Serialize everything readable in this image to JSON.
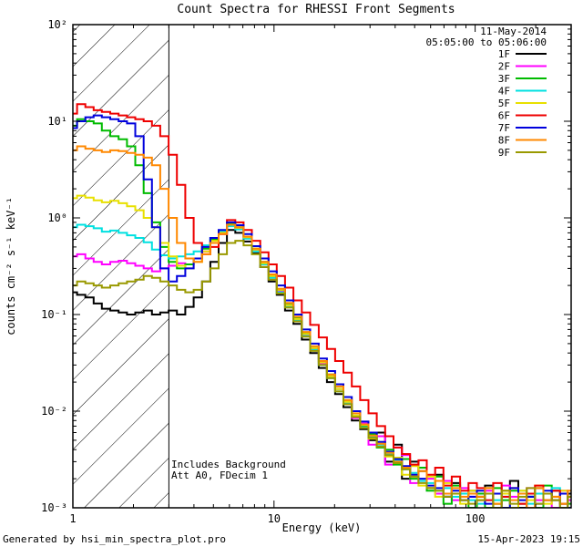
{
  "title": "Count Spectra for RHESSI Front Segments",
  "annotations": {
    "date": "11-May-2014",
    "time_range": "05:05:00 to 05:06:00",
    "note_line1": "Includes Background",
    "note_line2": "Att A0, FDecim 1"
  },
  "footer": {
    "left": "Generated by hsi_min_spectra_plot.pro",
    "right": "15-Apr-2023 19:15"
  },
  "chart_data": {
    "type": "line",
    "title": "Count Spectra for RHESSI Front Segments",
    "xlabel": "Energy (keV)",
    "ylabel": "counts cm⁻² s⁻¹ keV⁻¹",
    "xscale": "log",
    "yscale": "log",
    "xlim": [
      1,
      300
    ],
    "ylim": [
      0.001,
      100
    ],
    "x_ticks": [
      1,
      10,
      100
    ],
    "x_tick_labels": [
      "1",
      "10",
      "100"
    ],
    "y_ticks": [
      100,
      10,
      1,
      0.1,
      0.01,
      0.001
    ],
    "y_tick_labels": [
      "10²",
      "10¹",
      "10⁰",
      "10⁻¹",
      "10⁻²",
      "10⁻³"
    ],
    "grid": false,
    "legend_position": "top-right",
    "hatch_region": {
      "x_start": 1,
      "x_end": 3
    },
    "energy_kev": [
      1.0,
      1.1,
      1.21,
      1.33,
      1.46,
      1.61,
      1.77,
      1.95,
      2.14,
      2.36,
      2.59,
      2.85,
      3.14,
      3.45,
      3.8,
      4.18,
      4.6,
      5.06,
      5.56,
      6.12,
      6.73,
      7.4,
      8.14,
      8.96,
      9.85,
      10.8,
      11.9,
      13.1,
      14.4,
      15.9,
      17.5,
      19.2,
      21.1,
      23.2,
      25.6,
      28.1,
      30.9,
      34.0,
      37.4,
      41.2,
      45.3,
      49.8,
      54.8,
      60.3,
      66.3,
      72.9,
      80.2,
      88.3,
      97.1,
      107,
      117,
      129,
      142,
      156,
      172,
      189,
      208,
      229,
      252,
      277,
      300
    ],
    "series": [
      {
        "name": "1F",
        "color": "#000000",
        "values": [
          0.17,
          0.16,
          0.15,
          0.13,
          0.115,
          0.11,
          0.105,
          0.1,
          0.105,
          0.11,
          0.1,
          0.105,
          0.11,
          0.1,
          0.12,
          0.15,
          0.22,
          0.35,
          0.55,
          0.75,
          0.7,
          0.57,
          0.43,
          0.31,
          0.22,
          0.16,
          0.11,
          0.08,
          0.055,
          0.04,
          0.028,
          0.02,
          0.015,
          0.011,
          0.008,
          0.0065,
          0.005,
          0.006,
          0.003,
          0.0045,
          0.002,
          0.003,
          0.0024,
          0.0016,
          0.0022,
          0.0013,
          0.0018,
          0.0012,
          0.0015,
          0.0013,
          0.0017,
          0.0011,
          0.0014,
          0.0019,
          0.001,
          0.0013,
          0.0016,
          0.0012,
          0.0015,
          0.0011,
          0.0014
        ]
      },
      {
        "name": "2F",
        "color": "#ff00ff",
        "values": [
          0.4,
          0.42,
          0.38,
          0.35,
          0.33,
          0.35,
          0.36,
          0.34,
          0.32,
          0.3,
          0.28,
          0.3,
          0.32,
          0.34,
          0.33,
          0.38,
          0.45,
          0.55,
          0.68,
          0.85,
          0.78,
          0.62,
          0.46,
          0.34,
          0.25,
          0.175,
          0.125,
          0.09,
          0.062,
          0.044,
          0.031,
          0.023,
          0.017,
          0.012,
          0.0085,
          0.0075,
          0.0045,
          0.0055,
          0.0028,
          0.0042,
          0.0035,
          0.0018,
          0.0026,
          0.002,
          0.0014,
          0.0019,
          0.0012,
          0.0016,
          0.0013,
          0.0012,
          0.0015,
          0.001,
          0.0017,
          0.0013,
          0.0011,
          0.0016,
          0.0012,
          0.0014,
          0.001,
          0.0015,
          0.0012
        ]
      },
      {
        "name": "3F",
        "color": "#00bb00",
        "values": [
          9.0,
          10.5,
          10.0,
          9.5,
          8.0,
          7.0,
          6.5,
          5.5,
          3.5,
          1.8,
          0.9,
          0.5,
          0.35,
          0.3,
          0.33,
          0.38,
          0.48,
          0.6,
          0.72,
          0.88,
          0.8,
          0.64,
          0.48,
          0.35,
          0.25,
          0.18,
          0.13,
          0.092,
          0.065,
          0.045,
          0.032,
          0.024,
          0.017,
          0.013,
          0.009,
          0.007,
          0.0058,
          0.0042,
          0.004,
          0.0028,
          0.0032,
          0.002,
          0.0026,
          0.0015,
          0.0021,
          0.0011,
          0.0017,
          0.0014,
          0.001,
          0.0014,
          0.001,
          0.0016,
          0.0012,
          0.0015,
          0.0011,
          0.0013,
          0.001,
          0.0017,
          0.0012,
          0.0014,
          0.0011
        ]
      },
      {
        "name": "4F",
        "color": "#00e0e0",
        "values": [
          0.8,
          0.85,
          0.82,
          0.78,
          0.72,
          0.74,
          0.7,
          0.66,
          0.62,
          0.56,
          0.47,
          0.41,
          0.38,
          0.4,
          0.42,
          0.45,
          0.52,
          0.62,
          0.72,
          0.82,
          0.76,
          0.61,
          0.45,
          0.33,
          0.24,
          0.17,
          0.12,
          0.087,
          0.06,
          0.043,
          0.03,
          0.022,
          0.016,
          0.012,
          0.0088,
          0.0068,
          0.0055,
          0.0045,
          0.0036,
          0.0031,
          0.0025,
          0.0023,
          0.0019,
          0.0018,
          0.0015,
          0.0016,
          0.0013,
          0.0014,
          0.0012,
          0.0011,
          0.0016,
          0.0012,
          0.0013,
          0.001,
          0.0015,
          0.0011,
          0.0014,
          0.0012,
          0.0016,
          0.001,
          0.0013
        ]
      },
      {
        "name": "5F",
        "color": "#e8e000",
        "values": [
          1.6,
          1.7,
          1.62,
          1.52,
          1.45,
          1.5,
          1.42,
          1.32,
          1.2,
          1.0,
          0.8,
          0.55,
          0.4,
          0.32,
          0.3,
          0.35,
          0.45,
          0.58,
          0.7,
          0.85,
          0.79,
          0.63,
          0.47,
          0.34,
          0.25,
          0.18,
          0.125,
          0.09,
          0.063,
          0.045,
          0.032,
          0.023,
          0.017,
          0.0125,
          0.009,
          0.0072,
          0.0052,
          0.0048,
          0.0034,
          0.0033,
          0.0022,
          0.0027,
          0.0017,
          0.0021,
          0.0013,
          0.0018,
          0.0014,
          0.0011,
          0.0015,
          0.0012,
          0.0016,
          0.0011,
          0.0014,
          0.001,
          0.0015,
          0.0012,
          0.0017,
          0.0011,
          0.0013,
          0.0015,
          0.001
        ]
      },
      {
        "name": "6F",
        "color": "#ee0000",
        "values": [
          12,
          15,
          14,
          13,
          12.5,
          12,
          11.5,
          11,
          10.5,
          10,
          9,
          7,
          4.5,
          2.2,
          1.0,
          0.55,
          0.42,
          0.5,
          0.68,
          0.95,
          0.9,
          0.75,
          0.58,
          0.44,
          0.33,
          0.25,
          0.19,
          0.14,
          0.105,
          0.078,
          0.058,
          0.044,
          0.033,
          0.025,
          0.018,
          0.013,
          0.0095,
          0.007,
          0.0055,
          0.0042,
          0.0036,
          0.0028,
          0.0031,
          0.0022,
          0.0026,
          0.0017,
          0.0021,
          0.0015,
          0.0018,
          0.0016,
          0.0012,
          0.0018,
          0.0013,
          0.0016,
          0.0011,
          0.0014,
          0.0017,
          0.0012,
          0.0015,
          0.0011,
          0.0013
        ]
      },
      {
        "name": "7F",
        "color": "#0000dd",
        "values": [
          8.5,
          10,
          11,
          11.5,
          11,
          10.5,
          10,
          9.5,
          7.0,
          2.5,
          0.8,
          0.3,
          0.22,
          0.25,
          0.3,
          0.38,
          0.5,
          0.62,
          0.75,
          0.9,
          0.84,
          0.68,
          0.51,
          0.38,
          0.28,
          0.2,
          0.14,
          0.1,
          0.07,
          0.05,
          0.035,
          0.026,
          0.019,
          0.014,
          0.01,
          0.0078,
          0.006,
          0.0048,
          0.0038,
          0.0032,
          0.0027,
          0.0022,
          0.002,
          0.0017,
          0.0016,
          0.0013,
          0.0015,
          0.0012,
          0.0013,
          0.0015,
          0.0011,
          0.0014,
          0.001,
          0.0016,
          0.0012,
          0.0013,
          0.0011,
          0.0015,
          0.0012,
          0.0014,
          0.001
        ]
      },
      {
        "name": "8F",
        "color": "#ff8800",
        "values": [
          5.0,
          5.5,
          5.2,
          5.0,
          4.8,
          5.0,
          4.9,
          4.7,
          4.5,
          4.2,
          3.5,
          2.0,
          1.0,
          0.55,
          0.38,
          0.35,
          0.42,
          0.55,
          0.68,
          0.85,
          0.8,
          0.64,
          0.48,
          0.35,
          0.26,
          0.185,
          0.132,
          0.095,
          0.066,
          0.047,
          0.033,
          0.024,
          0.018,
          0.013,
          0.0095,
          0.0073,
          0.0056,
          0.0046,
          0.0037,
          0.003,
          0.0026,
          0.0021,
          0.0024,
          0.0016,
          0.0019,
          0.0014,
          0.0016,
          0.0013,
          0.0014,
          0.0013,
          0.0016,
          0.0011,
          0.0015,
          0.0012,
          0.0014,
          0.001,
          0.0016,
          0.0012,
          0.0013,
          0.0011,
          0.0015
        ]
      },
      {
        "name": "9F",
        "color": "#999900",
        "values": [
          0.2,
          0.22,
          0.21,
          0.2,
          0.19,
          0.2,
          0.21,
          0.22,
          0.23,
          0.25,
          0.24,
          0.22,
          0.2,
          0.18,
          0.17,
          0.18,
          0.22,
          0.3,
          0.42,
          0.55,
          0.58,
          0.52,
          0.42,
          0.31,
          0.23,
          0.165,
          0.118,
          0.085,
          0.059,
          0.042,
          0.03,
          0.022,
          0.016,
          0.0118,
          0.0087,
          0.0067,
          0.0053,
          0.0043,
          0.0035,
          0.0029,
          0.0025,
          0.0021,
          0.0018,
          0.0016,
          0.0015,
          0.0013,
          0.0014,
          0.0012,
          0.0011,
          0.0012,
          0.0014,
          0.001,
          0.0015,
          0.0011,
          0.0013,
          0.0016,
          0.0011,
          0.0014,
          0.0012,
          0.001,
          0.0013
        ]
      }
    ]
  }
}
